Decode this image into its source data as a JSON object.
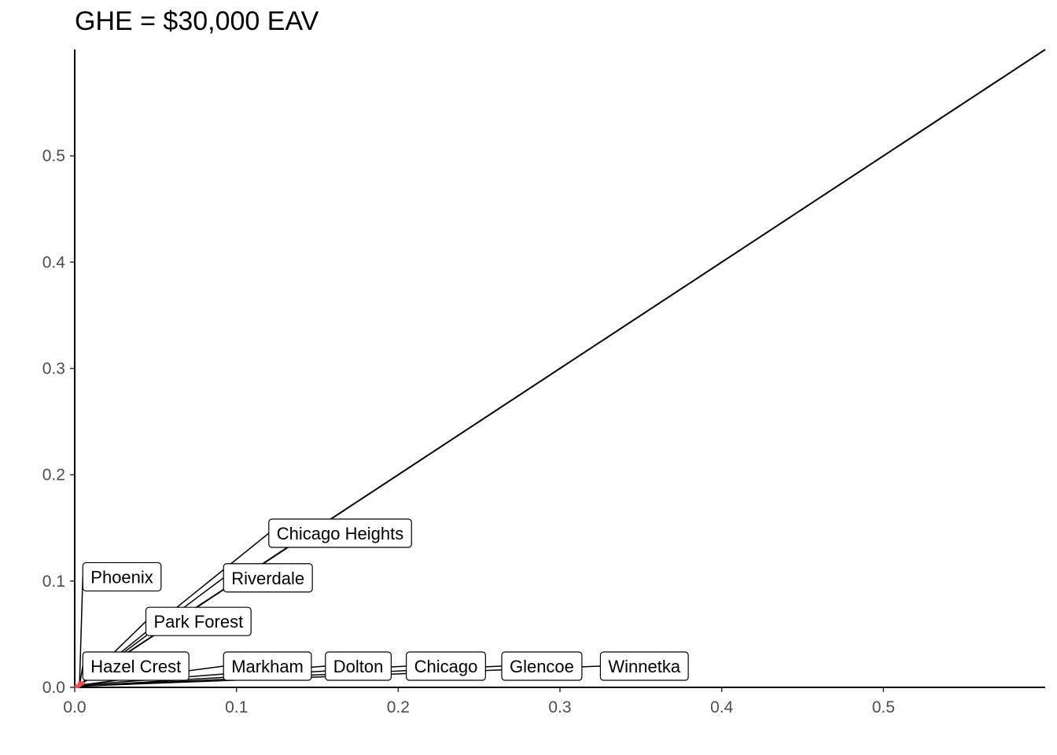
{
  "chart_data": {
    "type": "scatter",
    "title": "GHE = $30,000 EAV",
    "xlabel": "",
    "ylabel": "",
    "xlim": [
      0,
      0.6
    ],
    "ylim": [
      0,
      0.6
    ],
    "x_ticks": [
      "0.0",
      "0.1",
      "0.2",
      "0.3",
      "0.4",
      "0.5"
    ],
    "y_ticks": [
      "0.0",
      "0.1",
      "0.2",
      "0.3",
      "0.4",
      "0.5"
    ],
    "grid": false,
    "reference_line": {
      "slope": 1,
      "intercept": 0
    },
    "points": [
      {
        "name": "Phoenix",
        "x": 0.003,
        "y": 0.004,
        "label_x": 0.005,
        "label_y": 0.104
      },
      {
        "name": "Chicago Heights",
        "x": 0.005,
        "y": 0.004,
        "label_x": 0.12,
        "label_y": 0.145
      },
      {
        "name": "Riverdale",
        "x": 0.005,
        "y": 0.004,
        "label_x": 0.092,
        "label_y": 0.103
      },
      {
        "name": "Park Forest",
        "x": 0.004,
        "y": 0.003,
        "label_x": 0.044,
        "label_y": 0.062
      },
      {
        "name": "Hazel Crest",
        "x": 0.003,
        "y": 0.002,
        "label_x": 0.005,
        "label_y": 0.02
      },
      {
        "name": "Markham",
        "x": 0.003,
        "y": 0.002,
        "label_x": 0.092,
        "label_y": 0.02
      },
      {
        "name": "Dolton",
        "x": 0.003,
        "y": 0.002,
        "label_x": 0.155,
        "label_y": 0.02
      },
      {
        "name": "Chicago",
        "x": 0.002,
        "y": 0.001,
        "label_x": 0.205,
        "label_y": 0.02
      },
      {
        "name": "Glencoe",
        "x": 0.001,
        "y": 0.001,
        "label_x": 0.264,
        "label_y": 0.02
      },
      {
        "name": "Winnetka",
        "x": 0.001,
        "y": 0.001,
        "label_x": 0.325,
        "label_y": 0.02
      }
    ],
    "point_color": "#e8504a"
  }
}
